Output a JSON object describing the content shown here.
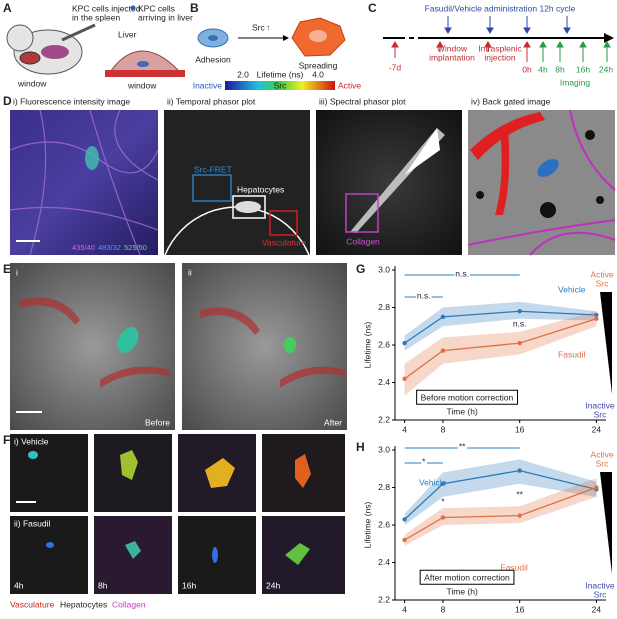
{
  "panels": {
    "A": {
      "label": "A",
      "injected": [
        "KPC cells injected",
        "in the spleen"
      ],
      "arriving": [
        "KPC cells",
        "arriving in liver"
      ],
      "liver": "Liver",
      "window_mouse": "window",
      "window_liver": "window"
    },
    "B": {
      "label": "B",
      "src": "Src",
      "adhesion": "Adhesion",
      "spreading": "Spreading",
      "lifetime_min": "2.0",
      "lifetime_label": "Lifetime (ns)",
      "lifetime_max": "4.0",
      "inactive": "Inactive",
      "src_bar": "Src",
      "active": "Active"
    },
    "C": {
      "label": "C",
      "administration": "Fasudil/Vehicle administration 12h cycle",
      "day": "-7d",
      "window": [
        "Window",
        "implantation"
      ],
      "injection": [
        "Intrasplenic",
        "injection"
      ],
      "times": [
        "0h",
        "4h",
        "8h",
        "16h",
        "24h"
      ],
      "imaging": "Imaging"
    },
    "D": {
      "label": "D",
      "titles": [
        "i) Fluorescence intensity image",
        "ii) Temporal phasor plot",
        "iii) Spectral phasor plot",
        "iv) Back gated image"
      ],
      "channels": [
        "435/40",
        "483/32",
        "525/50"
      ],
      "src_fret": "Src-FRET",
      "hepatocytes": "Hepatocytes",
      "vasculature": "Vasculature",
      "collagen": "Collagen"
    },
    "E": {
      "label": "E",
      "left": "i",
      "right": "ii",
      "before": "Before",
      "after": "After"
    },
    "F": {
      "label": "F",
      "vehicle": "i) Vehicle",
      "fasudil": "ii) Fasudil",
      "times": [
        "4h",
        "8h",
        "16h",
        "24h"
      ],
      "legend": [
        "Vasculature",
        "Hepatocytes",
        "Collagen"
      ]
    },
    "G": {
      "label": "G"
    },
    "H": {
      "label": "H"
    }
  },
  "chart_data": [
    {
      "type": "line",
      "ylabel": "Lifetime (ns)",
      "xlabel": "Time (h)",
      "x": [
        4,
        8,
        16,
        24
      ],
      "xlim": [
        3,
        25
      ],
      "xticks": [
        4,
        8,
        16,
        24
      ],
      "ylim": [
        2.2,
        3
      ],
      "yticks": [
        2.2,
        2.4,
        2.6,
        2.8,
        {
          "value": 3,
          "label": "3.0"
        }
      ],
      "box_label": "Before motion correction",
      "active_label": [
        "Active",
        "Src"
      ],
      "inactive_label": [
        "Inactive",
        "Src"
      ],
      "significance": [
        "n.s.",
        "n.s.",
        "n.s."
      ],
      "series": [
        {
          "name": "Vehicle",
          "color": "#2b7bba",
          "values": [
            2.61,
            2.75,
            2.78,
            2.76
          ],
          "lower": [
            2.57,
            2.7,
            2.74,
            2.73
          ],
          "upper": [
            2.65,
            2.8,
            2.83,
            2.78
          ]
        },
        {
          "name": "Fasudil",
          "color": "#e07040",
          "values": [
            2.42,
            2.57,
            2.61,
            2.74
          ],
          "lower": [
            2.33,
            2.5,
            2.55,
            2.7
          ],
          "upper": [
            2.5,
            2.64,
            2.67,
            2.78
          ]
        }
      ]
    },
    {
      "type": "line",
      "ylabel": "Lifetime (ns)",
      "xlabel": "Time (h)",
      "x": [
        4,
        8,
        16,
        24
      ],
      "xlim": [
        3,
        25
      ],
      "xticks": [
        4,
        8,
        16,
        24
      ],
      "ylim": [
        2.2,
        3
      ],
      "yticks": [
        2.2,
        2.4,
        2.6,
        2.8,
        {
          "value": 3,
          "label": "3.0"
        }
      ],
      "box_label": "After motion correction",
      "active_label": [
        "Active",
        "Src"
      ],
      "inactive_label": [
        "Inactive",
        "Src"
      ],
      "significance": [
        "**",
        "*",
        "*",
        "**"
      ],
      "series": [
        {
          "name": "Vehicle",
          "color": "#2b7bba",
          "values": [
            2.63,
            2.82,
            2.89,
            2.79
          ],
          "lower": [
            2.6,
            2.75,
            2.82,
            2.75
          ],
          "upper": [
            2.66,
            2.88,
            2.95,
            2.83
          ]
        },
        {
          "name": "Fasudil",
          "color": "#e07040",
          "values": [
            2.52,
            2.64,
            2.65,
            2.8
          ],
          "lower": [
            2.49,
            2.6,
            2.61,
            2.75
          ],
          "upper": [
            2.55,
            2.69,
            2.7,
            2.85
          ]
        }
      ]
    }
  ]
}
